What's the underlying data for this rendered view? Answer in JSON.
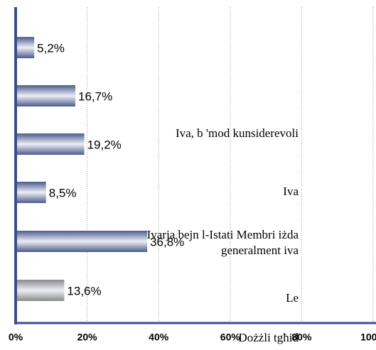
{
  "chart_data": {
    "type": "bar",
    "orientation": "horizontal",
    "categories": [
      null,
      null,
      "Iva, b 'mod kunsiderevoli",
      "Iva",
      "Ivarja bejn l-Istati Membri iżda generalment iva",
      "Le"
    ],
    "values": [
      5.2,
      16.7,
      19.2,
      8.5,
      36.8,
      13.6
    ],
    "value_labels": [
      "5,2%",
      "16,7%",
      "19,2%",
      "8,5%",
      "36,8%",
      "13,6%"
    ],
    "colors": [
      "#4b5b8e",
      "#4b5b8e",
      "#4b5b8e",
      "#4b5b8e",
      "#4b5b8e",
      "#8a8a8a"
    ],
    "x_label": "Dożżli tgħid",
    "xlim": [
      0,
      100
    ],
    "xticks": [
      {
        "value": 0,
        "label": "0%"
      },
      {
        "value": 20,
        "label": "20%"
      },
      {
        "value": 40,
        "label": "40%"
      },
      {
        "value": 60,
        "label": "60%"
      },
      {
        "value": 80,
        "label": "80%"
      },
      {
        "value": 100,
        "label": "100%"
      }
    ],
    "grid": true
  }
}
